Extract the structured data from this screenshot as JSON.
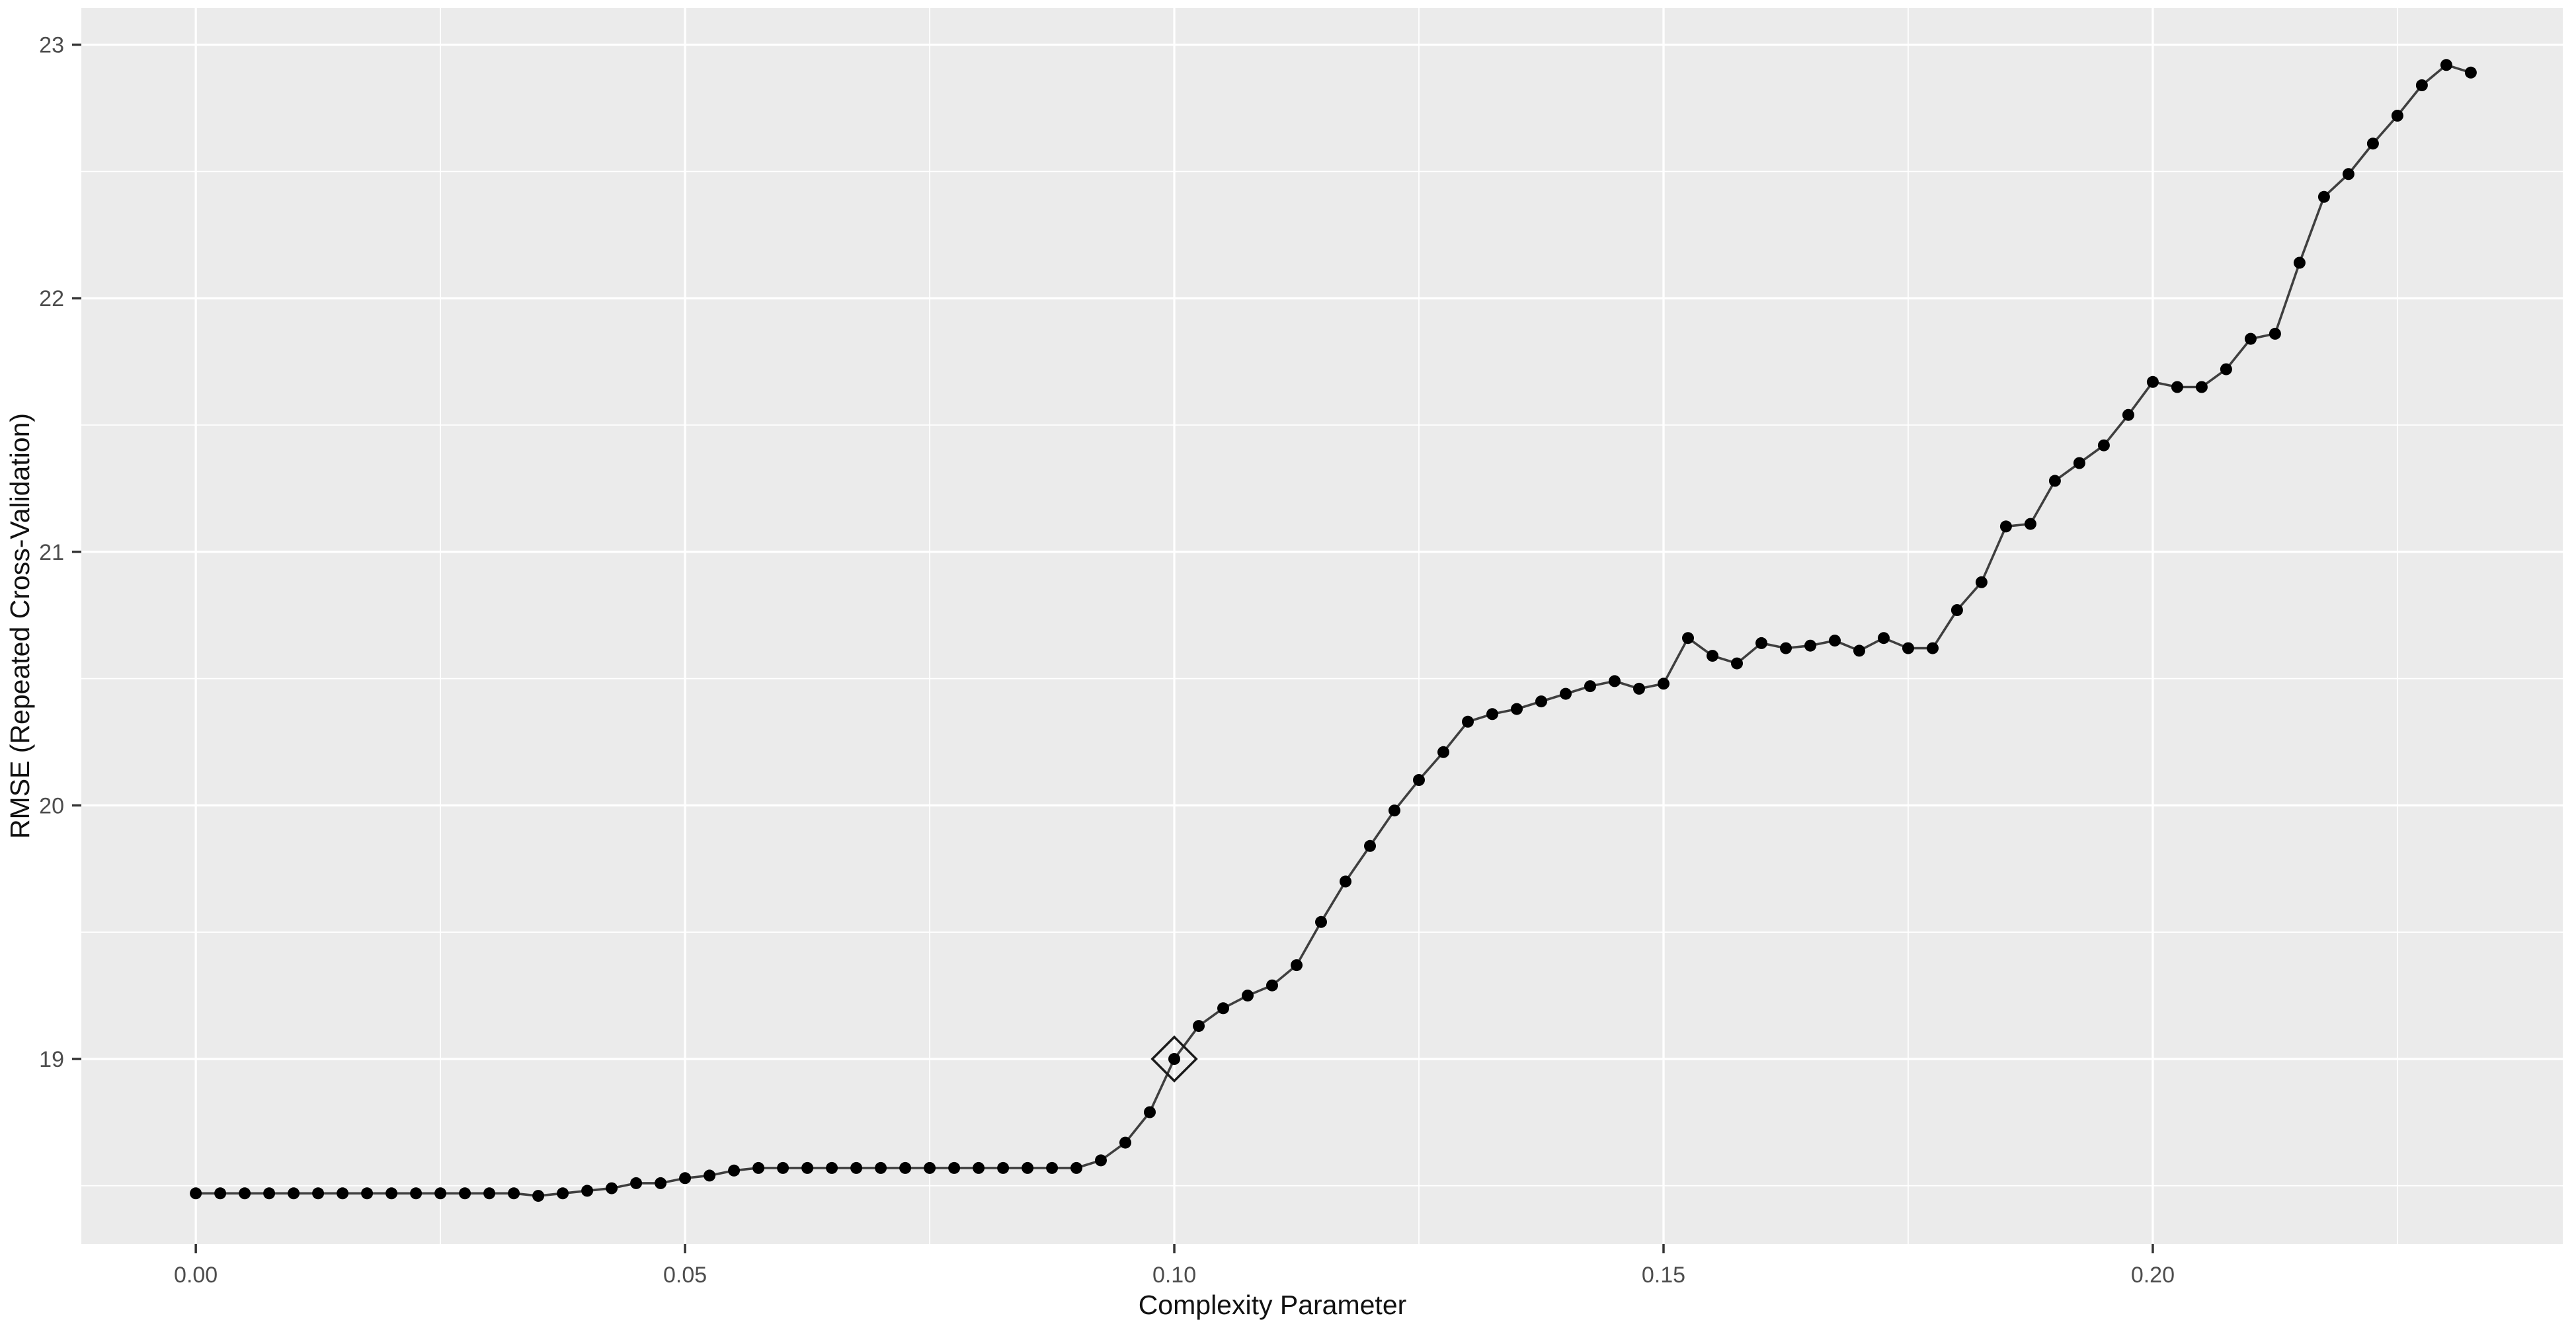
{
  "chart_data": {
    "type": "line",
    "title": "",
    "xlabel": "Complexity Parameter",
    "ylabel": "RMSE (Repeated Cross-Validation)",
    "legend": "none",
    "grid": "on",
    "panel_style": "ggplot-gray",
    "xlim": [
      -0.0117,
      0.2419
    ],
    "ylim": [
      18.27,
      23.145
    ],
    "x_major_ticks": {
      "values": [
        0.0,
        0.05,
        0.1,
        0.15,
        0.2
      ],
      "labels": [
        "0.00",
        "0.05",
        "0.10",
        "0.15",
        "0.20"
      ]
    },
    "y_major_ticks": {
      "values": [
        19,
        20,
        21,
        22,
        23
      ],
      "labels": [
        "19",
        "20",
        "21",
        "22",
        "23"
      ]
    },
    "x_minor_ticks": [
      0.025,
      0.075,
      0.125,
      0.175,
      0.225
    ],
    "y_minor_ticks": [
      18.5,
      19.5,
      20.5,
      21.5,
      22.5
    ],
    "best_point": {
      "x": 0.1,
      "y": 19.0,
      "marker": "open-diamond"
    },
    "series": [
      {
        "name": "RMSE vs cp",
        "marker": "point",
        "x": [
          0.0,
          0.0025,
          0.005,
          0.0075,
          0.01,
          0.0125,
          0.015,
          0.0175,
          0.02,
          0.0225,
          0.025,
          0.0275,
          0.03,
          0.0325,
          0.035,
          0.0375,
          0.04,
          0.0425,
          0.045,
          0.0475,
          0.05,
          0.0525,
          0.055,
          0.0575,
          0.06,
          0.0625,
          0.065,
          0.0675,
          0.07,
          0.0725,
          0.075,
          0.0775,
          0.08,
          0.0825,
          0.085,
          0.0875,
          0.09,
          0.0925,
          0.095,
          0.0975,
          0.1,
          0.1025,
          0.105,
          0.1075,
          0.11,
          0.1125,
          0.115,
          0.1175,
          0.12,
          0.1225,
          0.125,
          0.1275,
          0.13,
          0.1325,
          0.135,
          0.1375,
          0.14,
          0.1425,
          0.145,
          0.1475,
          0.15,
          0.1525,
          0.155,
          0.1575,
          0.16,
          0.1625,
          0.165,
          0.1675,
          0.17,
          0.1725,
          0.175,
          0.1775,
          0.18,
          0.1825,
          0.185,
          0.1875,
          0.19,
          0.1925,
          0.195,
          0.1975,
          0.2,
          0.2025,
          0.205,
          0.2075,
          0.21,
          0.2125,
          0.215,
          0.2175,
          0.22,
          0.2225,
          0.225,
          0.2275,
          0.23,
          0.2325
        ],
        "y": [
          18.47,
          18.47,
          18.47,
          18.47,
          18.47,
          18.47,
          18.47,
          18.47,
          18.47,
          18.47,
          18.47,
          18.47,
          18.47,
          18.47,
          18.46,
          18.47,
          18.48,
          18.49,
          18.51,
          18.51,
          18.53,
          18.54,
          18.56,
          18.57,
          18.57,
          18.57,
          18.57,
          18.57,
          18.57,
          18.57,
          18.57,
          18.57,
          18.57,
          18.57,
          18.57,
          18.57,
          18.57,
          18.6,
          18.67,
          18.79,
          19.0,
          19.13,
          19.2,
          19.25,
          19.29,
          19.37,
          19.54,
          19.7,
          19.84,
          19.98,
          20.1,
          20.21,
          20.33,
          20.36,
          20.38,
          20.41,
          20.44,
          20.47,
          20.49,
          20.46,
          20.48,
          20.66,
          20.59,
          20.56,
          20.64,
          20.62,
          20.63,
          20.65,
          20.61,
          20.66,
          20.62,
          20.62,
          20.77,
          20.88,
          21.1,
          21.11,
          21.28,
          21.35,
          21.42,
          21.54,
          21.67,
          21.65,
          21.65,
          21.72,
          21.84,
          21.86,
          22.14,
          22.4,
          22.49,
          22.61,
          22.72,
          22.84,
          22.92,
          22.89
        ]
      }
    ],
    "colors": {
      "panel_background": "#EBEBEB",
      "gridline": "#FFFFFF",
      "series_line": "#3f3f3f",
      "series_point": "#000000",
      "best_marker_stroke": "#1a1a1a",
      "tick_mark": "#333333",
      "tick_label": "#4d4d4d",
      "axis_title": "#111111",
      "outer_background": "#FFFFFF"
    }
  }
}
